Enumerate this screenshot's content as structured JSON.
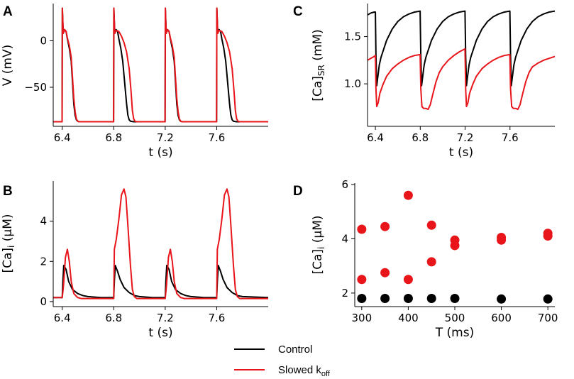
{
  "colors": {
    "control": "#000000",
    "slowed": "#e8151b"
  },
  "legend": {
    "control_label": "Control",
    "slowed_label_main": "Slowed k",
    "slowed_label_sub": "off"
  },
  "chart_data": [
    {
      "id": "A",
      "panel_label": "A",
      "type": "line",
      "title": "",
      "xlabel": "t (s)",
      "ylabel": "V (mV)",
      "xlim": [
        6.33,
        8.0
      ],
      "ylim": [
        -92,
        40
      ],
      "xticks": [
        6.4,
        6.8,
        7.2,
        7.6
      ],
      "xtick_labels": [
        "6.4",
        "6.8",
        "7.2",
        "7.6"
      ],
      "yticks": [
        -50,
        0
      ],
      "ytick_labels": [
        "−50",
        "0"
      ],
      "beat_times_s": [
        6.4,
        6.8,
        7.2,
        7.6
      ],
      "series": [
        {
          "name": "Control",
          "color_key": "control",
          "x": [
            6.33,
            6.399,
            6.401,
            6.408,
            6.418,
            6.43,
            6.44,
            6.455,
            6.47,
            6.48,
            6.49,
            6.5,
            6.51,
            6.52,
            6.53,
            6.55,
            6.6,
            6.799,
            6.801,
            6.808,
            6.818,
            6.83,
            6.84,
            6.855,
            6.87,
            6.885,
            6.9,
            6.91,
            6.92,
            6.93,
            6.95,
            7.0,
            7.199,
            7.201,
            7.208,
            7.218,
            7.23,
            7.24,
            7.255,
            7.27,
            7.28,
            7.29,
            7.3,
            7.31,
            7.32,
            7.33,
            7.35,
            7.4,
            7.599,
            7.601,
            7.608,
            7.618,
            7.63,
            7.64,
            7.655,
            7.67,
            7.685,
            7.7,
            7.71,
            7.72,
            7.73,
            7.75,
            8.0
          ],
          "y": [
            -87,
            -87,
            35,
            8,
            12,
            10,
            2,
            -8,
            -22,
            -45,
            -68,
            -80,
            -85,
            -86.5,
            -87,
            -87,
            -87,
            -87,
            35,
            8,
            12,
            10,
            2,
            -8,
            -22,
            -45,
            -68,
            -80,
            -85,
            -86.5,
            -87,
            -87,
            -87,
            35,
            8,
            12,
            10,
            2,
            -8,
            -22,
            -45,
            -68,
            -80,
            -85,
            -86.5,
            -87,
            -87,
            -87,
            -87,
            35,
            8,
            12,
            10,
            2,
            -8,
            -22,
            -45,
            -68,
            -80,
            -85,
            -86.5,
            -87,
            -87
          ]
        },
        {
          "name": "Slowed koff",
          "color_key": "slowed",
          "x": [
            6.33,
            6.399,
            6.401,
            6.408,
            6.418,
            6.43,
            6.44,
            6.455,
            6.47,
            6.48,
            6.49,
            6.5,
            6.51,
            6.52,
            6.53,
            6.55,
            6.6,
            6.799,
            6.801,
            6.808,
            6.818,
            6.84,
            6.86,
            6.88,
            6.9,
            6.92,
            6.935,
            6.945,
            6.955,
            6.965,
            6.98,
            7.0,
            7.199,
            7.201,
            7.208,
            7.218,
            7.23,
            7.24,
            7.255,
            7.27,
            7.28,
            7.29,
            7.3,
            7.31,
            7.32,
            7.33,
            7.35,
            7.4,
            7.599,
            7.601,
            7.608,
            7.618,
            7.64,
            7.66,
            7.68,
            7.7,
            7.72,
            7.735,
            7.745,
            7.755,
            7.765,
            7.78,
            8.0
          ],
          "y": [
            -87,
            -87,
            35,
            8,
            12,
            10,
            3,
            -5,
            -18,
            -40,
            -62,
            -76,
            -84,
            -86.5,
            -87,
            -87,
            -87,
            -87,
            35,
            8,
            11,
            10,
            5,
            -2,
            -12,
            -30,
            -55,
            -75,
            -84,
            -86.5,
            -87,
            -87,
            -87,
            35,
            8,
            12,
            10,
            3,
            -5,
            -18,
            -40,
            -62,
            -76,
            -84,
            -86.5,
            -87,
            -87,
            -87,
            -87,
            35,
            8,
            11,
            10,
            5,
            -2,
            -12,
            -30,
            -55,
            -75,
            -84,
            -86.5,
            -87,
            -87
          ]
        }
      ]
    },
    {
      "id": "B",
      "panel_label": "B",
      "type": "line",
      "title": "",
      "xlabel": "t (s)",
      "ylabel": "[Ca]i (µM)",
      "ylabel_main": "[Ca]",
      "ylabel_sub": "i",
      "ylabel_tail": " (µM)",
      "xlim": [
        6.33,
        8.0
      ],
      "ylim": [
        -0.25,
        6.0
      ],
      "xticks": [
        6.4,
        6.8,
        7.2,
        7.6
      ],
      "xtick_labels": [
        "6.4",
        "6.8",
        "7.2",
        "7.6"
      ],
      "yticks": [
        0,
        2,
        4
      ],
      "ytick_labels": [
        "0",
        "2",
        "4"
      ],
      "series": [
        {
          "name": "Control",
          "color_key": "control",
          "x": [
            6.33,
            6.4,
            6.405,
            6.412,
            6.43,
            6.45,
            6.48,
            6.52,
            6.56,
            6.6,
            6.7,
            6.8,
            6.805,
            6.812,
            6.83,
            6.85,
            6.88,
            6.92,
            6.96,
            7.0,
            7.1,
            7.2,
            7.205,
            7.212,
            7.23,
            7.25,
            7.28,
            7.32,
            7.36,
            7.4,
            7.5,
            7.6,
            7.605,
            7.612,
            7.63,
            7.65,
            7.68,
            7.72,
            7.76,
            7.8,
            8.0
          ],
          "y": [
            0.2,
            0.2,
            1.0,
            1.8,
            1.6,
            1.0,
            0.6,
            0.4,
            0.3,
            0.25,
            0.2,
            0.2,
            1.0,
            1.8,
            1.5,
            1.1,
            0.7,
            0.45,
            0.3,
            0.25,
            0.2,
            0.2,
            1.0,
            1.8,
            1.6,
            1.0,
            0.6,
            0.4,
            0.3,
            0.25,
            0.2,
            0.2,
            1.0,
            1.8,
            1.5,
            1.1,
            0.7,
            0.45,
            0.3,
            0.25,
            0.2
          ]
        },
        {
          "name": "Slowed koff",
          "color_key": "slowed",
          "x": [
            6.33,
            6.4,
            6.41,
            6.425,
            6.44,
            6.455,
            6.47,
            6.49,
            6.52,
            6.55,
            6.6,
            6.8,
            6.805,
            6.82,
            6.84,
            6.86,
            6.88,
            6.895,
            6.91,
            6.93,
            6.945,
            6.96,
            6.98,
            7.0,
            7.05,
            7.2,
            7.21,
            7.225,
            7.24,
            7.255,
            7.27,
            7.29,
            7.32,
            7.35,
            7.4,
            7.6,
            7.605,
            7.62,
            7.64,
            7.66,
            7.68,
            7.695,
            7.71,
            7.73,
            7.745,
            7.76,
            7.78,
            7.8,
            8.0
          ],
          "y": [
            0.2,
            0.2,
            0.8,
            2.2,
            2.6,
            2.0,
            1.0,
            0.4,
            0.2,
            0.15,
            0.15,
            0.15,
            2.6,
            3.1,
            4.1,
            5.3,
            5.6,
            5.2,
            3.8,
            1.8,
            0.6,
            0.25,
            0.15,
            0.15,
            0.15,
            0.15,
            0.8,
            2.2,
            2.6,
            2.0,
            1.0,
            0.4,
            0.2,
            0.15,
            0.15,
            0.15,
            2.6,
            3.1,
            4.1,
            5.3,
            5.6,
            5.2,
            3.8,
            1.8,
            0.6,
            0.25,
            0.15,
            0.15,
            0.15
          ]
        }
      ]
    },
    {
      "id": "C",
      "panel_label": "C",
      "type": "line",
      "title": "",
      "xlabel": "t (s)",
      "ylabel": "[Ca]SR (mM)",
      "ylabel_main": "[Ca]",
      "ylabel_sub": "SR",
      "ylabel_tail": " (mM)",
      "xlim": [
        6.33,
        8.0
      ],
      "ylim": [
        0.55,
        1.85
      ],
      "xticks": [
        6.4,
        6.8,
        7.2,
        7.6
      ],
      "xtick_labels": [
        "6.4",
        "6.8",
        "7.2",
        "7.6"
      ],
      "yticks": [
        1.0,
        1.5
      ],
      "ytick_labels": [
        "1.0",
        "1.5"
      ],
      "series": [
        {
          "name": "Control",
          "color_key": "control",
          "x": [
            6.33,
            6.36,
            6.39,
            6.4,
            6.405,
            6.412,
            6.42,
            6.435,
            6.45,
            6.5,
            6.55,
            6.6,
            6.65,
            6.7,
            6.75,
            6.799,
            6.805,
            6.812,
            6.82,
            6.835,
            6.85,
            6.9,
            6.95,
            7.0,
            7.05,
            7.1,
            7.15,
            7.199,
            7.205,
            7.212,
            7.22,
            7.235,
            7.25,
            7.3,
            7.35,
            7.4,
            7.45,
            7.5,
            7.55,
            7.599,
            7.605,
            7.612,
            7.62,
            7.635,
            7.65,
            7.7,
            7.75,
            7.8,
            7.85,
            7.9,
            7.95,
            8.0
          ],
          "y": [
            1.73,
            1.75,
            1.76,
            1.76,
            1.3,
            0.98,
            1.06,
            1.2,
            1.28,
            1.46,
            1.58,
            1.66,
            1.71,
            1.74,
            1.76,
            1.77,
            1.3,
            0.98,
            1.06,
            1.2,
            1.28,
            1.46,
            1.58,
            1.66,
            1.71,
            1.74,
            1.76,
            1.77,
            1.3,
            0.98,
            1.06,
            1.2,
            1.28,
            1.46,
            1.58,
            1.66,
            1.71,
            1.74,
            1.76,
            1.77,
            1.3,
            0.98,
            1.06,
            1.2,
            1.28,
            1.46,
            1.58,
            1.66,
            1.71,
            1.74,
            1.76,
            1.77
          ]
        },
        {
          "name": "Slowed koff",
          "color_key": "slowed",
          "x": [
            6.33,
            6.36,
            6.39,
            6.4,
            6.405,
            6.412,
            6.425,
            6.44,
            6.47,
            6.5,
            6.55,
            6.6,
            6.65,
            6.7,
            6.75,
            6.799,
            6.805,
            6.815,
            6.83,
            6.85,
            6.87,
            6.89,
            6.91,
            6.94,
            6.97,
            7.0,
            7.05,
            7.1,
            7.15,
            7.199,
            7.205,
            7.212,
            7.225,
            7.24,
            7.27,
            7.3,
            7.35,
            7.4,
            7.45,
            7.5,
            7.55,
            7.599,
            7.605,
            7.615,
            7.63,
            7.65,
            7.67,
            7.69,
            7.71,
            7.74,
            7.77,
            7.8,
            7.85,
            7.9,
            7.95,
            8.0
          ],
          "y": [
            1.25,
            1.27,
            1.29,
            1.3,
            0.95,
            0.76,
            0.8,
            0.9,
            1.0,
            1.08,
            1.16,
            1.21,
            1.25,
            1.28,
            1.3,
            1.31,
            0.95,
            0.76,
            0.74,
            0.74,
            0.73,
            0.78,
            0.88,
            1.02,
            1.12,
            1.18,
            1.25,
            1.3,
            1.34,
            1.37,
            0.95,
            0.76,
            0.8,
            0.9,
            1.0,
            1.08,
            1.16,
            1.21,
            1.25,
            1.28,
            1.3,
            1.31,
            0.95,
            0.76,
            0.74,
            0.74,
            0.73,
            0.78,
            0.88,
            1.02,
            1.12,
            1.18,
            1.22,
            1.25,
            1.27,
            1.29
          ]
        }
      ]
    },
    {
      "id": "D",
      "panel_label": "D",
      "type": "scatter",
      "title": "",
      "xlabel": "T (ms)",
      "ylabel": "[Ca]i (µM)",
      "ylabel_main": "[Ca]",
      "ylabel_sub": "i",
      "ylabel_tail": " (µM)",
      "xlim": [
        285,
        715
      ],
      "ylim": [
        1.5,
        6.05
      ],
      "xticks": [
        300,
        400,
        500,
        600,
        700
      ],
      "xtick_labels": [
        "300",
        "400",
        "500",
        "600",
        "700"
      ],
      "yticks": [
        2,
        4,
        6
      ],
      "ytick_labels": [
        "2",
        "4",
        "6"
      ],
      "series": [
        {
          "name": "Control",
          "color_key": "control",
          "x": [
            300,
            350,
            400,
            450,
            500,
            600,
            700
          ],
          "y": [
            1.8,
            1.8,
            1.8,
            1.8,
            1.8,
            1.78,
            1.78
          ]
        },
        {
          "name": "Slowed koff",
          "color_key": "slowed",
          "x": [
            300,
            300,
            350,
            350,
            400,
            400,
            450,
            450,
            500,
            500,
            600,
            600,
            700,
            700
          ],
          "y": [
            4.35,
            2.5,
            4.45,
            2.75,
            5.6,
            2.5,
            4.5,
            3.15,
            3.95,
            3.75,
            4.05,
            3.95,
            4.2,
            4.1
          ]
        }
      ]
    }
  ]
}
